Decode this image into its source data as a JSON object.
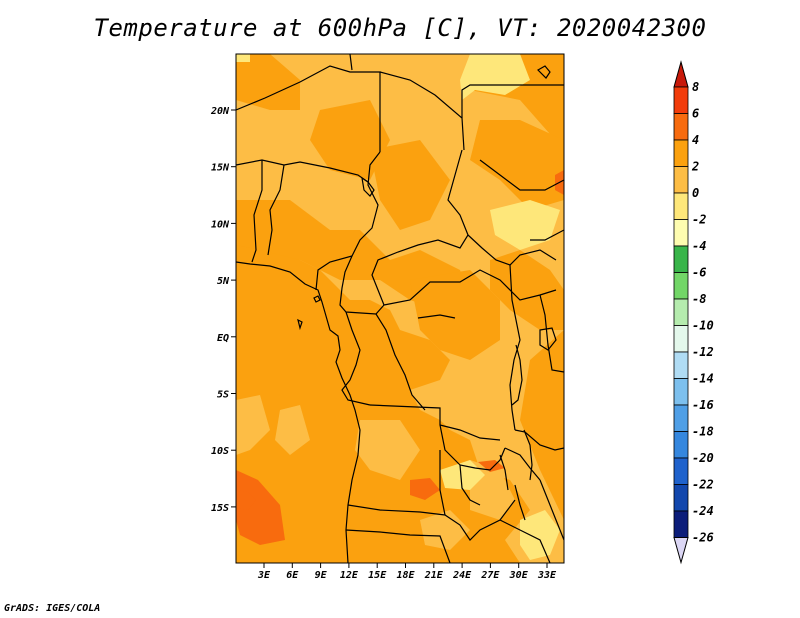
{
  "title": "Temperature at 600hPa [C], VT: 2020042300",
  "credit": "GrADS: IGES/COLA",
  "map": {
    "lat_labels": [
      "20N",
      "15N",
      "10N",
      "5N",
      "EQ",
      "5S",
      "10S",
      "15S"
    ],
    "lon_labels": [
      "3E",
      "6E",
      "9E",
      "12E",
      "15E",
      "18E",
      "21E",
      "24E",
      "27E",
      "30E",
      "33E"
    ],
    "field_colors": {
      "neg2_0": "#fee77a",
      "0_2": "#fdbd45",
      "2_4": "#fba10f",
      "4_6": "#f86b0e",
      "6_8": "#f03b0c"
    }
  },
  "colorbar": {
    "labels": [
      "8",
      "6",
      "4",
      "2",
      "0",
      "-2",
      "-4",
      "-6",
      "-8",
      "-10",
      "-12",
      "-14",
      "-16",
      "-18",
      "-20",
      "-22",
      "-24",
      "-26"
    ],
    "colors": [
      "#e01e05",
      "#f23c0b",
      "#f76b0f",
      "#fba10f",
      "#fdbd45",
      "#fee77a",
      "#fefcb0",
      "#39b54a",
      "#72d667",
      "#b5ecae",
      "#e4f8ec",
      "#b0dcf4",
      "#7dc0ee",
      "#4f9fe6",
      "#3587de",
      "#1f62cc",
      "#1247ad",
      "#0c1d7a",
      "#04105a"
    ],
    "top_arrow_color": "#c8190a",
    "bottom_arrow_color": "#dcd7f5"
  }
}
